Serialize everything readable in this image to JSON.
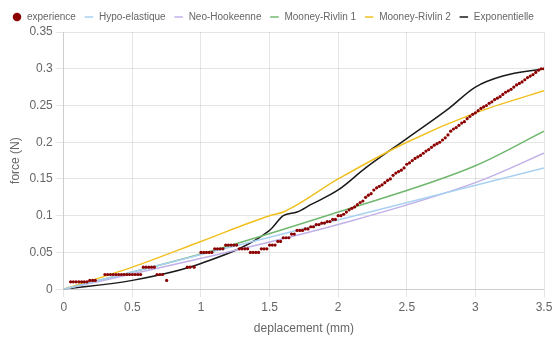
{
  "chart_data": {
    "type": "scatter",
    "xlabel": "deplacement (mm)",
    "ylabel": "force (N)",
    "xlim": [
      0,
      3.5
    ],
    "ylim": [
      0,
      0.35
    ],
    "xticks": [
      0,
      0.5,
      1,
      1.5,
      2,
      2.5,
      3,
      3.5
    ],
    "yticks": [
      0,
      0.05,
      0.1,
      0.15,
      0.2,
      0.25,
      0.3,
      0.35
    ],
    "grid": true,
    "legend": "upper left",
    "series": [
      {
        "name": "experience",
        "type": "scatter",
        "marker": "circle",
        "color": "#8B0000",
        "x": [
          0.05,
          0.07,
          0.09,
          0.11,
          0.13,
          0.15,
          0.17,
          0.19,
          0.21,
          0.23,
          0.3,
          0.32,
          0.34,
          0.36,
          0.38,
          0.4,
          0.42,
          0.44,
          0.46,
          0.48,
          0.5,
          0.52,
          0.54,
          0.56,
          0.58,
          0.6,
          0.62,
          0.64,
          0.66,
          0.68,
          0.7,
          0.72,
          0.75,
          0.9,
          0.92,
          0.95,
          1.0,
          1.02,
          1.04,
          1.06,
          1.08,
          1.1,
          1.12,
          1.14,
          1.16,
          1.18,
          1.2,
          1.22,
          1.24,
          1.26,
          1.28,
          1.3,
          1.32,
          1.34,
          1.36,
          1.38,
          1.4,
          1.42,
          1.44,
          1.46,
          1.48,
          1.5,
          1.52,
          1.54,
          1.56,
          1.58,
          1.6,
          1.62,
          1.64,
          1.66,
          1.68,
          1.7,
          1.72,
          1.74,
          1.76,
          1.78,
          1.8,
          1.82,
          1.84,
          1.86,
          1.88,
          1.9,
          1.92,
          1.94,
          1.96,
          1.98,
          2.0,
          2.02,
          2.04,
          2.06,
          2.08,
          2.1,
          2.12,
          2.14,
          2.16,
          2.18,
          2.2,
          2.22,
          2.24,
          2.26,
          2.28,
          2.3,
          2.32,
          2.34,
          2.36,
          2.38,
          2.4,
          2.42,
          2.44,
          2.46,
          2.48,
          2.5,
          2.52,
          2.54,
          2.56,
          2.58,
          2.6,
          2.62,
          2.64,
          2.66,
          2.68,
          2.7,
          2.72,
          2.74,
          2.76,
          2.78,
          2.8,
          2.82,
          2.84,
          2.86,
          2.88,
          2.9,
          2.92,
          2.94,
          2.96,
          2.98,
          3.0,
          3.02,
          3.04,
          3.06,
          3.08,
          3.1,
          3.12,
          3.14,
          3.16,
          3.18,
          3.2,
          3.22,
          3.24,
          3.26,
          3.28,
          3.3,
          3.32,
          3.34,
          3.36,
          3.38,
          3.4,
          3.42,
          3.44,
          3.46,
          3.48,
          3.5
        ],
        "values": [
          0.01,
          0.01,
          0.01,
          0.01,
          0.01,
          0.01,
          0.01,
          0.012,
          0.012,
          0.012,
          0.02,
          0.02,
          0.02,
          0.02,
          0.02,
          0.02,
          0.02,
          0.02,
          0.02,
          0.02,
          0.02,
          0.02,
          0.02,
          0.02,
          0.03,
          0.03,
          0.03,
          0.03,
          0.03,
          0.02,
          0.02,
          0.02,
          0.012,
          0.03,
          0.03,
          0.03,
          0.05,
          0.05,
          0.05,
          0.05,
          0.05,
          0.055,
          0.055,
          0.055,
          0.055,
          0.06,
          0.06,
          0.06,
          0.06,
          0.06,
          0.055,
          0.055,
          0.055,
          0.055,
          0.05,
          0.05,
          0.05,
          0.05,
          0.055,
          0.055,
          0.055,
          0.06,
          0.06,
          0.06,
          0.065,
          0.065,
          0.07,
          0.07,
          0.07,
          0.075,
          0.075,
          0.08,
          0.08,
          0.08,
          0.082,
          0.082,
          0.085,
          0.085,
          0.088,
          0.088,
          0.09,
          0.09,
          0.092,
          0.092,
          0.095,
          0.095,
          0.1,
          0.1,
          0.102,
          0.105,
          0.108,
          0.11,
          0.112,
          0.115,
          0.118,
          0.12,
          0.125,
          0.128,
          0.13,
          0.135,
          0.138,
          0.14,
          0.142,
          0.145,
          0.148,
          0.15,
          0.155,
          0.158,
          0.16,
          0.162,
          0.165,
          0.17,
          0.172,
          0.175,
          0.178,
          0.18,
          0.182,
          0.185,
          0.188,
          0.19,
          0.193,
          0.196,
          0.198,
          0.2,
          0.203,
          0.206,
          0.21,
          0.215,
          0.218,
          0.22,
          0.223,
          0.226,
          0.228,
          0.232,
          0.235,
          0.238,
          0.24,
          0.243,
          0.246,
          0.248,
          0.25,
          0.253,
          0.255,
          0.258,
          0.26,
          0.262,
          0.265,
          0.268,
          0.27,
          0.272,
          0.275,
          0.278,
          0.28,
          0.282,
          0.285,
          0.288,
          0.29,
          0.292,
          0.295,
          0.298,
          0.3,
          0.3
        ]
      },
      {
        "name": "Hypo-elastique",
        "type": "line",
        "color": "#a8d0f0",
        "x": [
          0,
          3.5
        ],
        "values": [
          0,
          0.165
        ]
      },
      {
        "name": "Neo-Hookeenne",
        "type": "line",
        "color": "#c0b0e8",
        "x": [
          0,
          1.0,
          2.0,
          3.0,
          3.5
        ],
        "values": [
          0,
          0.042,
          0.088,
          0.145,
          0.185
        ]
      },
      {
        "name": "Mooney-Rivlin 1",
        "type": "line",
        "color": "#70b870",
        "x": [
          0,
          1.0,
          2.0,
          3.0,
          3.5
        ],
        "values": [
          0,
          0.048,
          0.105,
          0.168,
          0.215
        ]
      },
      {
        "name": "Mooney-Rivlin 2",
        "type": "line",
        "color": "#f0c020",
        "x": [
          0,
          0.5,
          1.0,
          1.5,
          1.6,
          2.0,
          2.5,
          3.0,
          3.5
        ],
        "values": [
          0,
          0.03,
          0.065,
          0.1,
          0.105,
          0.15,
          0.2,
          0.24,
          0.27
        ]
      },
      {
        "name": "Exponentielle",
        "type": "line",
        "color": "#1a1a1a",
        "x": [
          0,
          0.5,
          1.0,
          1.5,
          1.6,
          1.7,
          1.8,
          2.0,
          2.2,
          2.5,
          2.8,
          3.0,
          3.2,
          3.5
        ],
        "values": [
          0,
          0.012,
          0.035,
          0.08,
          0.1,
          0.105,
          0.115,
          0.135,
          0.165,
          0.205,
          0.245,
          0.275,
          0.29,
          0.3
        ]
      }
    ]
  }
}
